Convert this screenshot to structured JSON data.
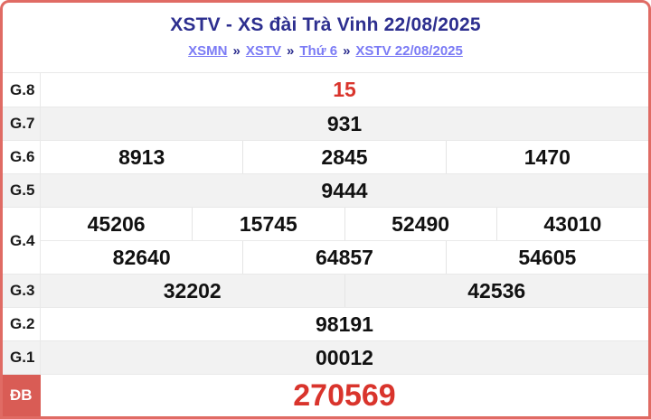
{
  "header": {
    "title": "XSTV - XS đài Trà Vinh 22/08/2025",
    "separator": "»",
    "breadcrumb": [
      {
        "label": "XSMN"
      },
      {
        "label": "XSTV"
      },
      {
        "label": "Thứ 6"
      },
      {
        "label": "XSTV 22/08/2025"
      }
    ]
  },
  "results": {
    "rows": [
      {
        "label": "G.8",
        "highlight": true,
        "groups": [
          [
            "15"
          ]
        ]
      },
      {
        "label": "G.7",
        "groups": [
          [
            "931"
          ]
        ]
      },
      {
        "label": "G.6",
        "groups": [
          [
            "8913",
            "2845",
            "1470"
          ]
        ]
      },
      {
        "label": "G.5",
        "groups": [
          [
            "9444"
          ]
        ]
      },
      {
        "label": "G.4",
        "groups": [
          [
            "45206",
            "15745",
            "52490",
            "43010"
          ],
          [
            "82640",
            "64857",
            "54605"
          ]
        ]
      },
      {
        "label": "G.3",
        "groups": [
          [
            "32202",
            "42536"
          ]
        ]
      },
      {
        "label": "G.2",
        "groups": [
          [
            "98191"
          ]
        ]
      },
      {
        "label": "G.1",
        "groups": [
          [
            "00012"
          ]
        ]
      },
      {
        "label": "ĐB",
        "special": true,
        "groups": [
          [
            "270569"
          ]
        ]
      }
    ]
  },
  "colors": {
    "card_border": "#e06b64",
    "special_label_bg": "#d95c55",
    "highlight_number": "#d9342c",
    "title": "#2d2f8f",
    "link": "#7b7bf5",
    "row_alt_bg": "#f2f2f2",
    "grid_line": "#e9e9e9"
  }
}
